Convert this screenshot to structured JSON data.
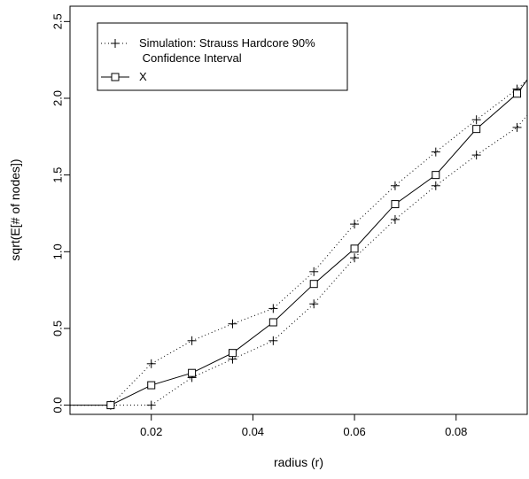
{
  "chart_data": {
    "type": "line",
    "title": "",
    "xlabel": "radius (r)",
    "ylabel": "sqrt(E[# of nodes])",
    "xlim": [
      0.004,
      0.094
    ],
    "ylim": [
      -0.06,
      2.6
    ],
    "xticks": [
      0.02,
      0.04,
      0.06,
      0.08
    ],
    "xtick_labels": [
      "0.02",
      "0.04",
      "0.06",
      "0.08"
    ],
    "yticks": [
      0.0,
      0.5,
      1.0,
      1.5,
      2.0,
      2.5
    ],
    "ytick_labels": [
      "0.0",
      "0.5",
      "1.0",
      "1.5",
      "2.0",
      "2.5"
    ],
    "grid": false,
    "legend": {
      "placement": "top-left",
      "entries": [
        {
          "line1": "Simulation: Strauss Hardcore 90%",
          "line2": " Confidence Interval",
          "marker": "plus",
          "linestyle": "dotted"
        },
        {
          "line1": "X",
          "line2": "",
          "marker": "square",
          "linestyle": "solid"
        }
      ]
    },
    "series": [
      {
        "name": "Simulation: Strauss Hardcore 90% Confidence Interval (upper)",
        "marker": "plus",
        "linestyle": "dotted",
        "x": [
          0.012,
          0.02,
          0.028,
          0.036,
          0.044,
          0.052,
          0.06,
          0.068,
          0.076,
          0.084,
          0.092
        ],
        "y": [
          0.0,
          0.27,
          0.42,
          0.53,
          0.63,
          0.87,
          1.18,
          1.43,
          1.65,
          1.86,
          2.06
        ],
        "ext_start": [
          0.004,
          0.0
        ],
        "ext_end": [
          0.094,
          2.12
        ]
      },
      {
        "name": "Simulation: Strauss Hardcore 90% Confidence Interval (lower)",
        "marker": "plus",
        "linestyle": "dotted",
        "x": [
          0.012,
          0.02,
          0.028,
          0.036,
          0.044,
          0.052,
          0.06,
          0.068,
          0.076,
          0.084,
          0.092
        ],
        "y": [
          0.0,
          0.0,
          0.18,
          0.3,
          0.42,
          0.66,
          0.96,
          1.21,
          1.43,
          1.63,
          1.81
        ],
        "ext_start": [
          0.004,
          0.0
        ],
        "ext_end": [
          0.094,
          1.89
        ]
      },
      {
        "name": "X",
        "marker": "square",
        "linestyle": "solid",
        "x": [
          0.012,
          0.02,
          0.028,
          0.036,
          0.044,
          0.052,
          0.06,
          0.068,
          0.076,
          0.084,
          0.092
        ],
        "y": [
          0.0,
          0.13,
          0.21,
          0.34,
          0.54,
          0.79,
          1.02,
          1.31,
          1.5,
          1.8,
          2.03
        ],
        "ext_start": [
          0.004,
          0.0
        ],
        "ext_end": [
          0.094,
          2.12
        ]
      }
    ]
  }
}
